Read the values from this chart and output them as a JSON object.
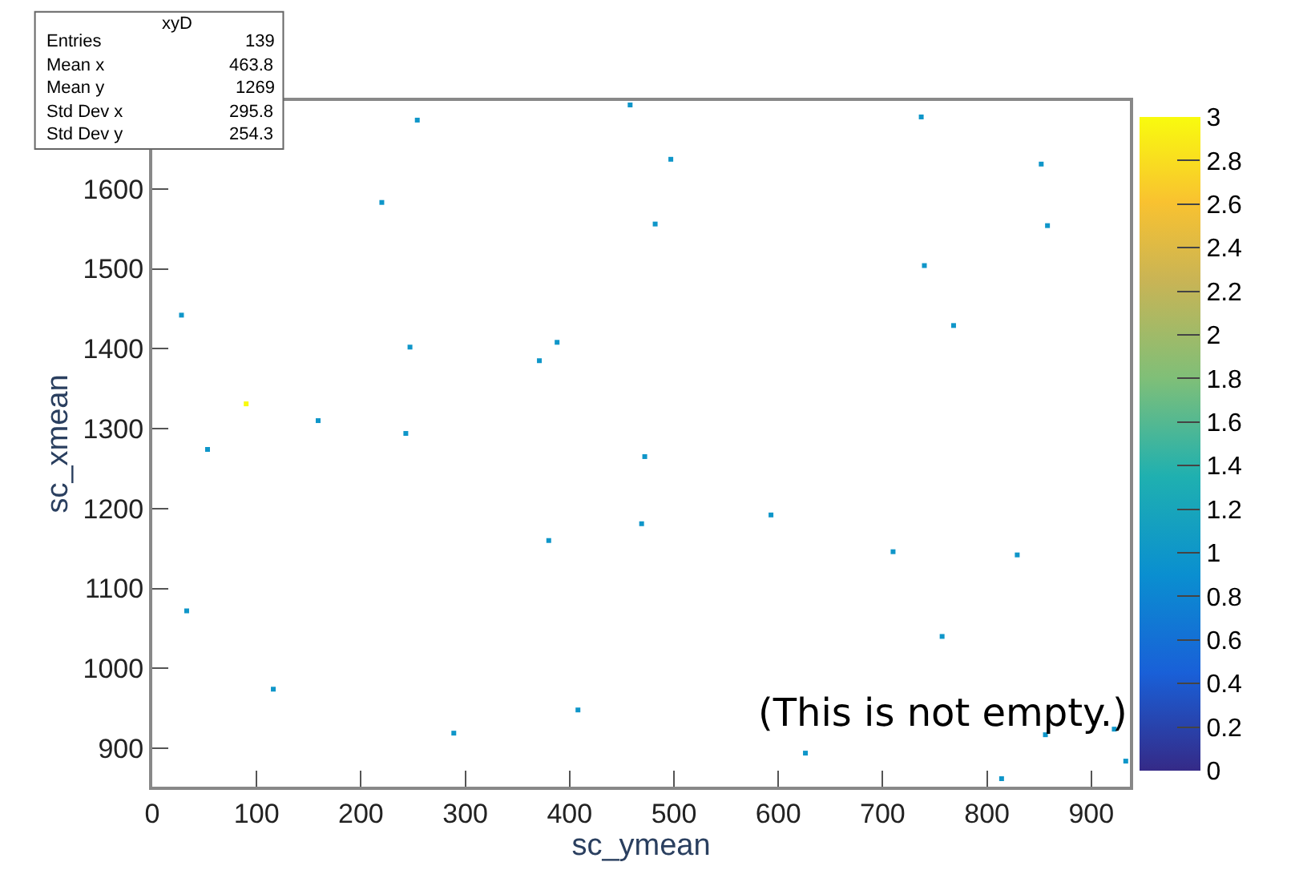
{
  "chart_data": {
    "type": "scatter",
    "xlabel": "sc_ymean",
    "ylabel": "sc_xmean",
    "annotations": [
      "xyD",
      "Entries 139",
      "Mean x 463.8",
      "Mean y 1269",
      "Std Dev x 295.8",
      "Std Dev y 254.3",
      "(This is not empty.)"
    ],
    "x": [
      254,
      458,
      737,
      497,
      852,
      220,
      482,
      858,
      740,
      28,
      768,
      247,
      388,
      371,
      90,
      159,
      243,
      53,
      472,
      593,
      469,
      380,
      710,
      829,
      33,
      757,
      116,
      408,
      289,
      856,
      922,
      626,
      814,
      933
    ],
    "values": [
      1686,
      1705,
      1690,
      1637,
      1631,
      1583,
      1556,
      1554,
      1504,
      1442,
      1429,
      1402,
      1408,
      1385,
      1331,
      1310,
      1294,
      1274,
      1265,
      1192,
      1181,
      1160,
      1146,
      1142,
      1072,
      1040,
      974,
      948,
      919,
      917,
      924,
      894,
      862,
      884
    ],
    "cvalues": [
      1,
      1,
      1,
      1,
      1,
      1,
      1,
      1,
      1,
      1,
      1,
      1,
      1,
      1,
      3,
      1,
      1,
      1,
      1,
      1,
      1,
      1,
      1,
      1,
      1,
      1,
      1,
      1,
      1,
      1,
      1,
      1,
      1,
      1
    ],
    "marker": "square",
    "xlim": [
      0,
      937
    ],
    "ylim": [
      852,
      1710
    ],
    "xticks": [
      0,
      100,
      200,
      300,
      400,
      500,
      600,
      700,
      800,
      900
    ],
    "yticks": [
      900,
      1000,
      1100,
      1200,
      1300,
      1400,
      1500,
      1600
    ],
    "clim": [
      0,
      3
    ],
    "cticks": [
      3,
      2.8,
      2.6,
      2.4,
      2.2,
      2,
      1.8,
      1.6,
      1.4,
      1.2,
      1,
      0.8,
      0.6,
      0.4,
      0.2,
      0
    ]
  }
}
